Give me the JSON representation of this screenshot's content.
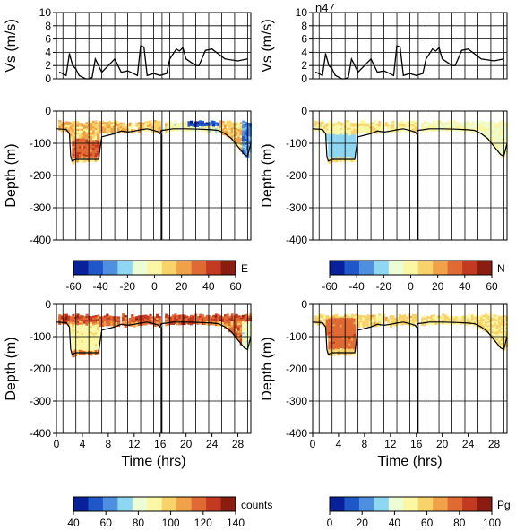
{
  "figure_note": "n47",
  "colorbar_colors": [
    "#08209a",
    "#1f57c8",
    "#4f8fe0",
    "#8fd6f2",
    "#ecfcd4",
    "#fbf7a4",
    "#f8d36a",
    "#f0a14a",
    "#e06a34",
    "#c33a22",
    "#8b1d10"
  ],
  "colors": {
    "profile_line": "#000000",
    "grid": "#000000"
  },
  "chart_data": [
    {
      "type": "line",
      "panel": "speed-left",
      "xlabel": "",
      "ylabel": "Vs (m/s)",
      "xlim": [
        0,
        30
      ],
      "ylim": [
        0,
        10
      ],
      "yticks": [
        0,
        2,
        4,
        6,
        8,
        10
      ],
      "series": [
        {
          "x": [
            0.5,
            1.5,
            2.0,
            2.5,
            3.0,
            3.5,
            4.5,
            5.0,
            5.5,
            6.0,
            7.0,
            8.0,
            9.0,
            10.0,
            11.0,
            12.5,
            13.0,
            13.5,
            14.0,
            15.0,
            16.0,
            17.0,
            17.5,
            18.5,
            19.0,
            19.5,
            20.0,
            21.5,
            22.0,
            23.0,
            24.0,
            26.0,
            28.0,
            29.5
          ],
          "y": [
            1.0,
            0.5,
            3.8,
            2.0,
            1.5,
            0.5,
            0.0,
            0.0,
            0.2,
            3.0,
            1.0,
            2.0,
            3.0,
            1.0,
            1.2,
            0.5,
            5.0,
            4.8,
            0.5,
            0.8,
            0.5,
            0.8,
            3.0,
            4.5,
            4.2,
            4.7,
            3.0,
            2.0,
            2.0,
            4.3,
            4.5,
            3.0,
            2.7,
            3.0
          ]
        }
      ]
    },
    {
      "type": "line",
      "panel": "speed-right",
      "xlabel": "",
      "ylabel": "Vs (m/s)",
      "xlim": [
        0,
        30
      ],
      "ylim": [
        0,
        10
      ],
      "yticks": [
        0,
        2,
        4,
        6,
        8,
        10
      ],
      "series": [
        {
          "x": [
            0.5,
            1.5,
            2.0,
            2.5,
            3.0,
            3.5,
            4.5,
            5.0,
            5.5,
            6.0,
            7.0,
            8.0,
            9.0,
            10.0,
            11.0,
            12.5,
            13.0,
            13.5,
            14.0,
            15.0,
            16.0,
            17.0,
            17.5,
            18.5,
            19.0,
            19.5,
            20.0,
            21.5,
            22.0,
            23.0,
            24.0,
            26.0,
            28.0,
            29.5
          ],
          "y": [
            1.0,
            0.5,
            3.8,
            2.0,
            1.5,
            0.5,
            0.0,
            0.0,
            0.2,
            3.0,
            1.0,
            2.0,
            3.0,
            1.0,
            1.2,
            0.5,
            5.0,
            4.8,
            0.5,
            0.8,
            0.5,
            0.8,
            3.0,
            4.5,
            4.2,
            4.7,
            3.0,
            2.0,
            2.0,
            4.3,
            4.5,
            3.0,
            2.7,
            3.0
          ]
        }
      ]
    },
    {
      "type": "heatmap",
      "panel": "depth-E",
      "ylabel": "Depth (m)",
      "xlim": [
        0,
        30
      ],
      "ylim": [
        -400,
        0
      ],
      "yticks": [
        0,
        -100,
        -200,
        -300,
        -400
      ],
      "colorbar": {
        "label": "E",
        "range": [
          -60,
          60
        ],
        "ticks": [
          -60,
          -40,
          -20,
          0,
          20,
          40,
          60
        ]
      }
    },
    {
      "type": "heatmap",
      "panel": "depth-N",
      "ylabel": "Depth (m)",
      "xlim": [
        0,
        30
      ],
      "ylim": [
        -400,
        0
      ],
      "yticks": [
        0,
        -100,
        -200,
        -300,
        -400
      ],
      "colorbar": {
        "label": "N",
        "range": [
          -60,
          60
        ],
        "ticks": [
          -60,
          -40,
          -20,
          0,
          20,
          40,
          60
        ]
      }
    },
    {
      "type": "heatmap",
      "panel": "depth-counts",
      "ylabel": "Depth (m)",
      "xlabel": "Time (hrs)",
      "xlim": [
        0,
        30
      ],
      "ylim": [
        -400,
        0
      ],
      "xticks": [
        0,
        4,
        8,
        12,
        16,
        20,
        24,
        28
      ],
      "yticks": [
        0,
        -100,
        -200,
        -300,
        -400
      ],
      "colorbar": {
        "label": "counts",
        "range": [
          40,
          140
        ],
        "ticks": [
          40,
          60,
          80,
          100,
          120,
          140
        ]
      }
    },
    {
      "type": "heatmap",
      "panel": "depth-Pg",
      "ylabel": "Depth (m)",
      "xlabel": "Time (hrs)",
      "xlim": [
        0,
        30
      ],
      "ylim": [
        -400,
        0
      ],
      "xticks": [
        0,
        4,
        8,
        12,
        16,
        20,
        24,
        28
      ],
      "yticks": [
        0,
        -100,
        -200,
        -300,
        -400
      ],
      "colorbar": {
        "label": "Pg",
        "range": [
          0,
          100
        ],
        "ticks": [
          0,
          20,
          40,
          60,
          80,
          100
        ]
      }
    }
  ],
  "bottom_profile": {
    "x": [
      0,
      1.5,
      2.0,
      2.2,
      2.4,
      3.0,
      3.5,
      6.5,
      7.0,
      8.0,
      9.0,
      10.0,
      11.0,
      12.0,
      13.0,
      14.0,
      15.0,
      15.8,
      16.0,
      16.2,
      17.0,
      18.0,
      20.0,
      22.0,
      24.0,
      25.0,
      26.0,
      27.0,
      28.0,
      29.0,
      29.5,
      30.0
    ],
    "y": [
      -55,
      -57,
      -70,
      -140,
      -155,
      -150,
      -150,
      -150,
      -80,
      -75,
      -70,
      -62,
      -65,
      -62,
      -58,
      -55,
      -60,
      -65,
      -70,
      -60,
      -58,
      -55,
      -55,
      -56,
      -58,
      -60,
      -70,
      -85,
      -110,
      -135,
      -140,
      -100
    ]
  },
  "trench_x": [
    16.2,
    16.5
  ],
  "vertical_lines_x": [
    1.0,
    3.0,
    5.0,
    7.0,
    9.0,
    11.0,
    13.0,
    15.0,
    16.3,
    17.5,
    19.5,
    21.5,
    23.5,
    25.5,
    27.5,
    29.5
  ]
}
